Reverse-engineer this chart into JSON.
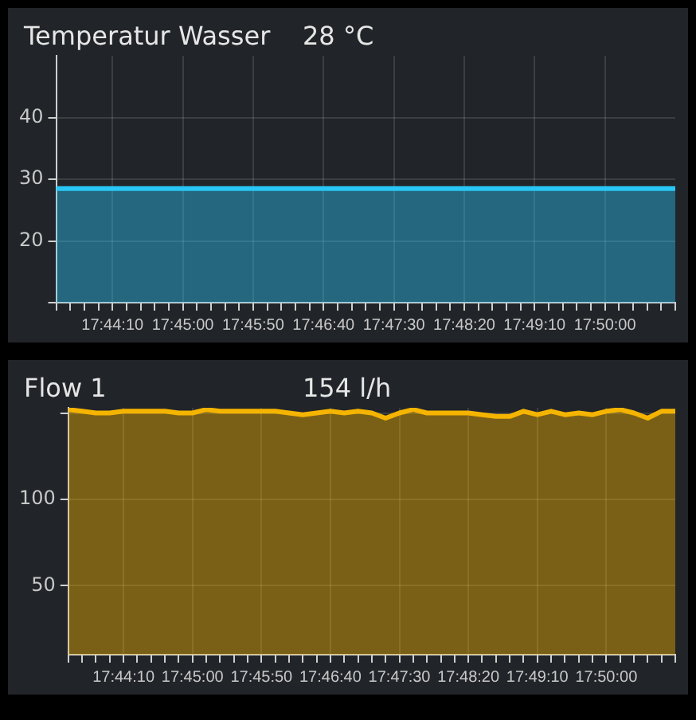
{
  "chart_data": [
    {
      "type": "area",
      "title": "Temperatur Wasser",
      "subtitle": "28 °C",
      "grid": true,
      "marker": "none",
      "x": [
        17.725,
        17.75,
        17.791667,
        17.833333,
        17.847222
      ],
      "series": [
        {
          "color": "#29c5f6",
          "values": [
            28.5,
            28.5,
            28.5,
            28.5,
            28.5
          ]
        }
      ],
      "xlim": [
        17.725,
        17.847222
      ],
      "ylim": [
        10,
        50
      ],
      "xticks": [
        {
          "value": 17.725,
          "label": null
        },
        {
          "value": 17.727778,
          "label": null
        },
        {
          "value": 17.730556,
          "label": null
        },
        {
          "value": 17.733333,
          "label": null
        },
        {
          "value": 17.736111,
          "label": "17:44:10"
        },
        {
          "value": 17.738889,
          "label": null
        },
        {
          "value": 17.741667,
          "label": null
        },
        {
          "value": 17.744444,
          "label": null
        },
        {
          "value": 17.747222,
          "label": null
        },
        {
          "value": 17.75,
          "label": "17:45:00"
        },
        {
          "value": 17.752778,
          "label": null
        },
        {
          "value": 17.755556,
          "label": null
        },
        {
          "value": 17.758333,
          "label": null
        },
        {
          "value": 17.761111,
          "label": null
        },
        {
          "value": 17.763889,
          "label": "17:45:50"
        },
        {
          "value": 17.766667,
          "label": null
        },
        {
          "value": 17.769444,
          "label": null
        },
        {
          "value": 17.772222,
          "label": null
        },
        {
          "value": 17.775,
          "label": null
        },
        {
          "value": 17.777778,
          "label": "17:46:40"
        },
        {
          "value": 17.780556,
          "label": null
        },
        {
          "value": 17.783333,
          "label": null
        },
        {
          "value": 17.786111,
          "label": null
        },
        {
          "value": 17.788889,
          "label": null
        },
        {
          "value": 17.791667,
          "label": "17:47:30"
        },
        {
          "value": 17.794444,
          "label": null
        },
        {
          "value": 17.797222,
          "label": null
        },
        {
          "value": 17.8,
          "label": null
        },
        {
          "value": 17.802778,
          "label": null
        },
        {
          "value": 17.805556,
          "label": "17:48:20"
        },
        {
          "value": 17.808333,
          "label": null
        },
        {
          "value": 17.811111,
          "label": null
        },
        {
          "value": 17.813889,
          "label": null
        },
        {
          "value": 17.816667,
          "label": null
        },
        {
          "value": 17.819444,
          "label": "17:49:10"
        },
        {
          "value": 17.822222,
          "label": null
        },
        {
          "value": 17.825,
          "label": null
        },
        {
          "value": 17.827778,
          "label": null
        },
        {
          "value": 17.830556,
          "label": null
        },
        {
          "value": 17.833333,
          "label": "17:50:00"
        },
        {
          "value": 17.836111,
          "label": null
        },
        {
          "value": 17.838889,
          "label": null
        },
        {
          "value": 17.841667,
          "label": null
        },
        {
          "value": 17.844444,
          "label": null
        },
        {
          "value": 17.847222,
          "label": null
        }
      ],
      "yticks": [
        {
          "value": 10,
          "label": null
        },
        20,
        30,
        40
      ]
    },
    {
      "type": "area",
      "title": "Flow 1",
      "subtitle": "154 l/h",
      "grid": true,
      "marker": "none",
      "x": [
        17.725,
        17.727778,
        17.730556,
        17.733333,
        17.736111,
        17.738889,
        17.741667,
        17.744444,
        17.747222,
        17.75,
        17.752778,
        17.755556,
        17.758333,
        17.761111,
        17.763889,
        17.766667,
        17.769444,
        17.772222,
        17.775,
        17.777778,
        17.780556,
        17.783333,
        17.786111,
        17.788889,
        17.791667,
        17.794444,
        17.797222,
        17.8,
        17.802778,
        17.805556,
        17.808333,
        17.811111,
        17.813889,
        17.816667,
        17.819444,
        17.822222,
        17.825,
        17.827778,
        17.830556,
        17.833333,
        17.836111,
        17.838889,
        17.841667,
        17.844444,
        17.847222
      ],
      "series": [
        {
          "color": "#f5b400",
          "values": [
            152,
            151,
            150,
            150,
            151,
            151,
            151,
            151,
            150,
            150,
            152,
            151,
            151,
            151,
            151,
            151,
            150,
            149,
            150,
            151,
            150,
            151,
            150,
            147,
            150,
            152,
            150,
            150,
            150,
            150,
            149,
            148,
            148,
            151,
            149,
            151,
            149,
            150,
            149,
            151,
            152,
            150,
            147,
            151,
            151
          ]
        }
      ],
      "xlim": [
        17.725,
        17.847222
      ],
      "ylim": [
        10,
        153
      ],
      "xticks": [
        {
          "value": 17.725,
          "label": null
        },
        {
          "value": 17.727778,
          "label": null
        },
        {
          "value": 17.730556,
          "label": null
        },
        {
          "value": 17.733333,
          "label": null
        },
        {
          "value": 17.736111,
          "label": "17:44:10"
        },
        {
          "value": 17.738889,
          "label": null
        },
        {
          "value": 17.741667,
          "label": null
        },
        {
          "value": 17.744444,
          "label": null
        },
        {
          "value": 17.747222,
          "label": null
        },
        {
          "value": 17.75,
          "label": "17:45:00"
        },
        {
          "value": 17.752778,
          "label": null
        },
        {
          "value": 17.755556,
          "label": null
        },
        {
          "value": 17.758333,
          "label": null
        },
        {
          "value": 17.761111,
          "label": null
        },
        {
          "value": 17.763889,
          "label": "17:45:50"
        },
        {
          "value": 17.766667,
          "label": null
        },
        {
          "value": 17.769444,
          "label": null
        },
        {
          "value": 17.772222,
          "label": null
        },
        {
          "value": 17.775,
          "label": null
        },
        {
          "value": 17.777778,
          "label": "17:46:40"
        },
        {
          "value": 17.780556,
          "label": null
        },
        {
          "value": 17.783333,
          "label": null
        },
        {
          "value": 17.786111,
          "label": null
        },
        {
          "value": 17.788889,
          "label": null
        },
        {
          "value": 17.791667,
          "label": "17:47:30"
        },
        {
          "value": 17.794444,
          "label": null
        },
        {
          "value": 17.797222,
          "label": null
        },
        {
          "value": 17.8,
          "label": null
        },
        {
          "value": 17.802778,
          "label": null
        },
        {
          "value": 17.805556,
          "label": "17:48:20"
        },
        {
          "value": 17.808333,
          "label": null
        },
        {
          "value": 17.811111,
          "label": null
        },
        {
          "value": 17.813889,
          "label": null
        },
        {
          "value": 17.816667,
          "label": null
        },
        {
          "value": 17.819444,
          "label": "17:49:10"
        },
        {
          "value": 17.822222,
          "label": null
        },
        {
          "value": 17.825,
          "label": null
        },
        {
          "value": 17.827778,
          "label": null
        },
        {
          "value": 17.830556,
          "label": null
        },
        {
          "value": 17.833333,
          "label": "17:50:00"
        },
        {
          "value": 17.836111,
          "label": null
        },
        {
          "value": 17.838889,
          "label": null
        },
        {
          "value": 17.841667,
          "label": null
        },
        {
          "value": 17.844444,
          "label": null
        },
        {
          "value": 17.847222,
          "label": null
        }
      ],
      "yticks": [
        50,
        100,
        {
          "value": 150,
          "label": null
        }
      ]
    }
  ]
}
